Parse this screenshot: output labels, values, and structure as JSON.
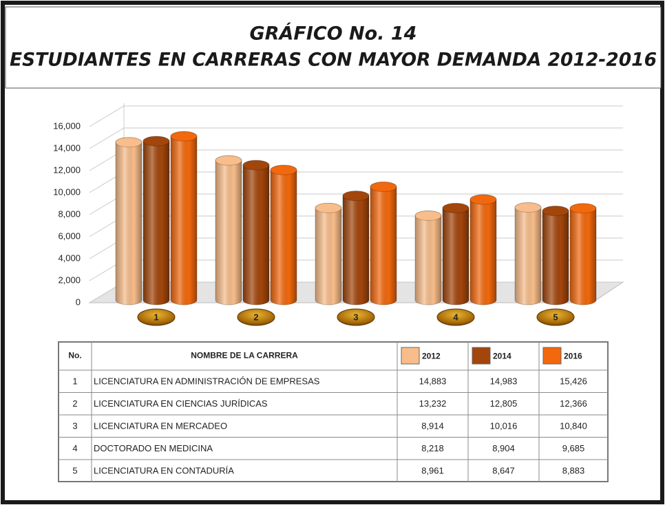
{
  "chart_data": {
    "type": "bar",
    "title": "GRÁFICO No. 14",
    "subtitle": "ESTUDIANTES EN CARRERAS CON MAYOR DEMANDA 2012-2016",
    "categories": [
      "1",
      "2",
      "3",
      "4",
      "5"
    ],
    "series": [
      {
        "name": "2012",
        "color": "#f8bd8a",
        "values": [
          14883,
          13232,
          8914,
          8218,
          8961
        ],
        "value_labels": [
          "14,883",
          "13,232",
          "8,914",
          "8,218",
          "8,961"
        ]
      },
      {
        "name": "2014",
        "color": "#a3460c",
        "values": [
          14983,
          12805,
          10016,
          8904,
          8647
        ],
        "value_labels": [
          "14,983",
          "12,805",
          "10,016",
          "8,904",
          "8,647"
        ]
      },
      {
        "name": "2016",
        "color": "#f2680d",
        "values": [
          15426,
          12366,
          10840,
          9685,
          8883
        ],
        "value_labels": [
          "15,426",
          "12,366",
          "10,840",
          "9,685",
          "8,883"
        ]
      }
    ],
    "ylim": [
      0,
      18000
    ],
    "yticks": [
      0,
      {
        "value": 2000,
        "label": "2,000"
      },
      {
        "value": 4000,
        "label": "4,000"
      },
      {
        "value": 6000,
        "label": "6,000"
      },
      {
        "value": 8000,
        "label": "8,000"
      },
      {
        "value": 10000,
        "label": "10,000"
      },
      {
        "value": 12000,
        "label": "12,000"
      },
      {
        "value": 14000,
        "label": "14,000"
      },
      {
        "value": 16000,
        "label": "16,000"
      }
    ],
    "grid": true,
    "table": {
      "headers": [
        "No.",
        "NOMBRE DE LA CARRERA"
      ],
      "names": [
        "LICENCIATURA EN ADMINISTRACIÓN DE EMPRESAS",
        "LICENCIATURA EN CIENCIAS JURÍDICAS",
        "LICENCIATURA EN MERCADEO",
        "DOCTORADO EN MEDICINA",
        "LICENCIATURA EN CONTADURÍA"
      ]
    }
  }
}
